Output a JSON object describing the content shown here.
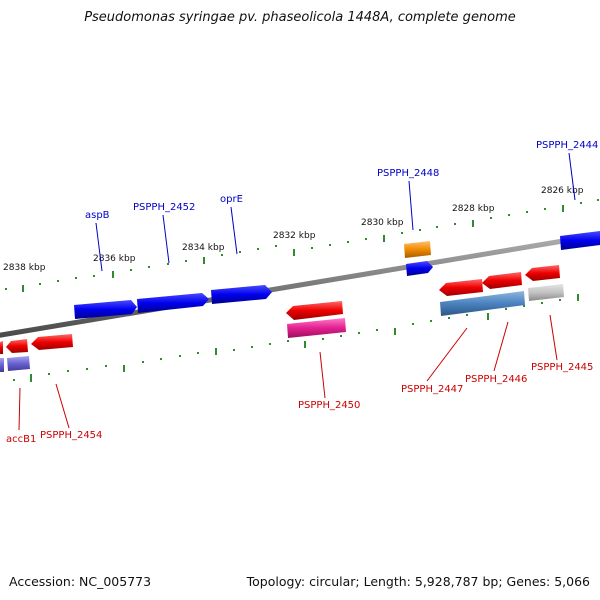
{
  "title": "Pseudomonas syringae pv. phaseolicola 1448A, complete genome",
  "footer": {
    "accession": "Accession: NC_005773",
    "topology": "Topology: circular; Length: 5,928,787 bp; Genes: 5,066"
  },
  "colors": {
    "forward_label": "#0000c8",
    "reverse_label": "#cc0000",
    "backbone": "#808080",
    "tick": "#2e8b2e"
  },
  "ticks": [
    "2838 kbp",
    "2836 kbp",
    "2834 kbp",
    "2832 kbp",
    "2830 kbp",
    "2828 kbp",
    "2826 kbp"
  ],
  "gene_labels": {
    "forward": [
      "aspB",
      "PSPPH_2452",
      "oprE",
      "PSPPH_2448",
      "PSPPH_2444"
    ],
    "reverse": [
      "accB1",
      "PSPPH_2454",
      "PSPPH_2450",
      "PSPPH_2447",
      "PSPPH_2446",
      "PSPPH_2445"
    ]
  }
}
